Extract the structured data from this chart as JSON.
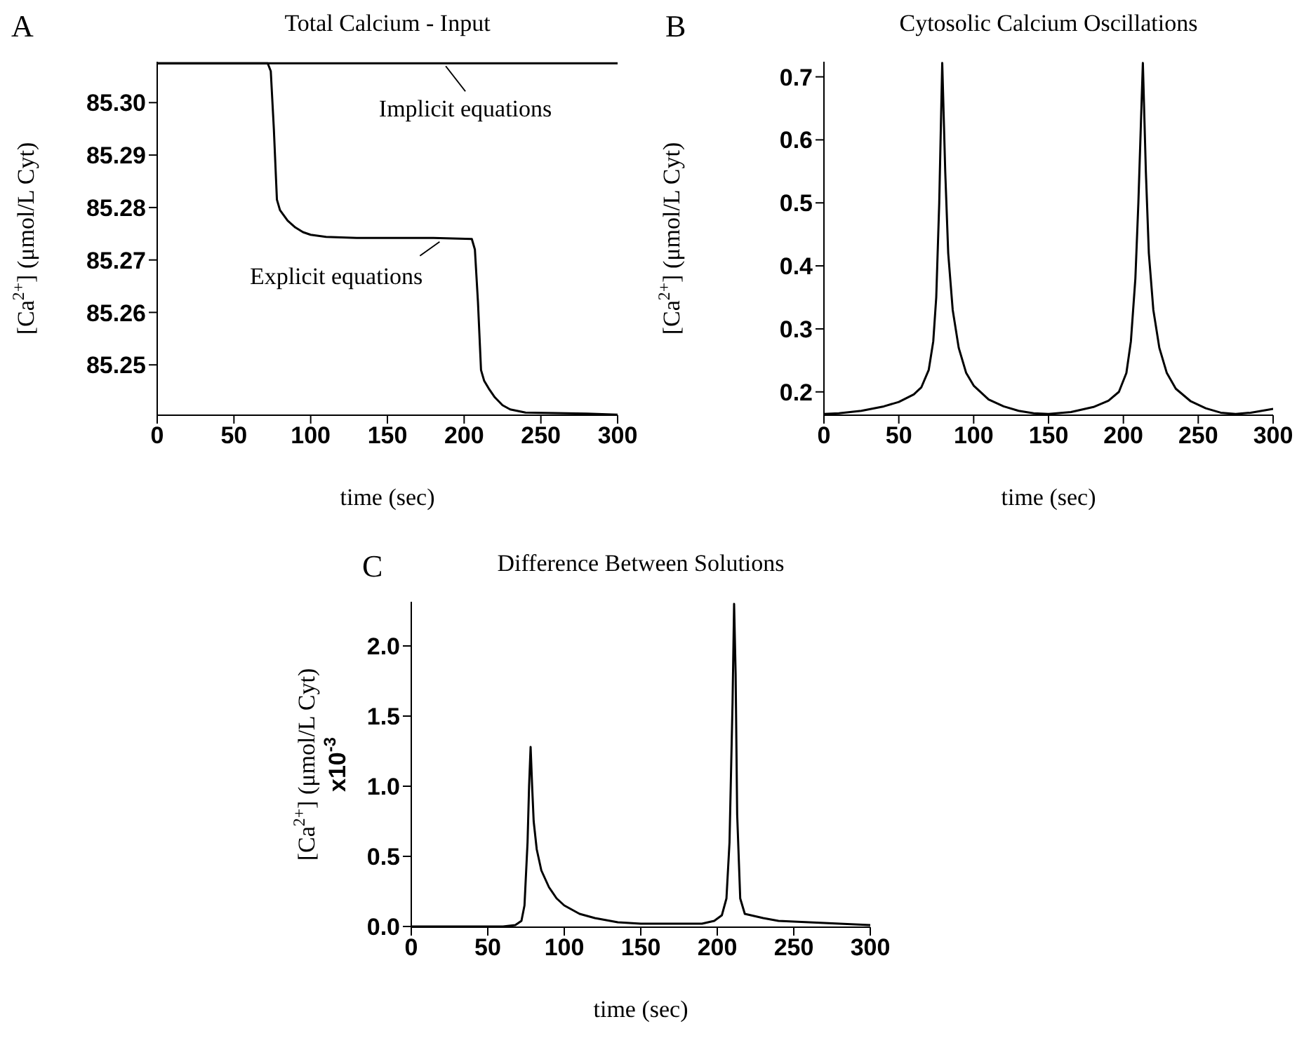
{
  "chart_data": [
    {
      "type": "line",
      "title": "Total Calcium - Input",
      "xlabel": "time (sec)",
      "ylabel": "[Ca$^{2+}$] (μmol/L Cyt)",
      "xlim": [
        0,
        300
      ],
      "xticks": [
        0,
        50,
        100,
        150,
        200,
        250,
        300
      ],
      "ylim": [
        85.2404,
        85.3078
      ],
      "yticks": [
        85.25,
        85.26,
        85.27,
        85.28,
        85.29,
        {
          "value": 85.3,
          "label": "85.30"
        }
      ],
      "annotations": [
        "A",
        {
          "text": "Implicit equations",
          "x": 188,
          "y": 85.3075
        },
        {
          "text": "Explicit equations",
          "x": 184,
          "y": 85.274
        }
      ],
      "series": [
        {
          "color": "#000000",
          "x": [
            0,
            300
          ],
          "values": [
            85.3075,
            85.3075
          ]
        },
        {
          "color": "#000000",
          "x": [
            0,
            72,
            74,
            76,
            78,
            80,
            85,
            90,
            95,
            100,
            110,
            130,
            150,
            180,
            205,
            207,
            209,
            211,
            213,
            216,
            220,
            225,
            230,
            240,
            260,
            280,
            300
          ],
          "values": [
            85.3075,
            85.3075,
            85.306,
            85.295,
            85.2815,
            85.2795,
            85.2775,
            85.2762,
            85.2753,
            85.2748,
            85.2744,
            85.2742,
            85.2742,
            85.2742,
            85.274,
            85.272,
            85.262,
            85.249,
            85.247,
            85.2455,
            85.2438,
            85.2423,
            85.2415,
            85.2409,
            85.2408,
            85.2407,
            85.2405
          ]
        }
      ]
    },
    {
      "type": "line",
      "title": "Cytosolic Calcium Oscillations",
      "xlabel": "time (sec)",
      "ylabel": "[Ca$^{2+}$] (μmol/L Cyt)",
      "xlim": [
        0,
        300
      ],
      "xticks": [
        0,
        50,
        100,
        150,
        200,
        250,
        300
      ],
      "ylim": [
        0.163,
        0.724
      ],
      "yticks": [
        0.2,
        0.3,
        0.4,
        0.5,
        0.6,
        0.7
      ],
      "annotations": [
        "B"
      ],
      "series": [
        {
          "color": "#000000",
          "x": [
            0,
            10,
            25,
            40,
            50,
            60,
            65,
            70,
            73,
            75,
            77,
            79,
            81,
            83,
            86,
            90,
            95,
            100,
            110,
            120,
            130,
            140,
            150,
            165,
            180,
            190,
            197,
            202,
            205,
            208,
            210,
            213,
            215,
            217,
            220,
            224,
            229,
            235,
            245,
            255,
            265,
            275,
            285,
            300
          ],
          "values": [
            0.165,
            0.166,
            0.17,
            0.177,
            0.184,
            0.196,
            0.207,
            0.235,
            0.28,
            0.35,
            0.5,
            0.722,
            0.55,
            0.42,
            0.33,
            0.27,
            0.23,
            0.21,
            0.188,
            0.177,
            0.17,
            0.166,
            0.165,
            0.168,
            0.176,
            0.186,
            0.2,
            0.23,
            0.28,
            0.38,
            0.5,
            0.722,
            0.55,
            0.42,
            0.33,
            0.27,
            0.23,
            0.205,
            0.185,
            0.174,
            0.167,
            0.165,
            0.167,
            0.173
          ]
        }
      ]
    },
    {
      "type": "line",
      "title": "Difference Between Solutions",
      "xlabel": "time (sec)",
      "ylabel": "[Ca$^{2+}$] (μmol/L Cyt)\nx10$^{-3}$",
      "xlim": [
        0,
        300
      ],
      "xticks": [
        0,
        50,
        100,
        150,
        200,
        250,
        300
      ],
      "ylim": [
        -0.005,
        2.315
      ],
      "yticks": [
        {
          "value": 0,
          "label": "0.0"
        },
        0.5,
        {
          "value": 1,
          "label": "1.0"
        },
        1.5,
        {
          "value": 2,
          "label": "2.0"
        }
      ],
      "annotations": [
        "C"
      ],
      "series": [
        {
          "color": "#000000",
          "x": [
            0,
            30,
            60,
            68,
            72,
            74,
            76,
            77,
            78,
            79,
            80,
            82,
            85,
            90,
            95,
            100,
            110,
            120,
            135,
            150,
            170,
            190,
            198,
            203,
            206,
            208,
            210,
            211,
            212,
            213,
            215,
            218,
            222,
            230,
            240,
            260,
            280,
            300
          ],
          "values": [
            0.0,
            0.0,
            0.0,
            0.01,
            0.04,
            0.15,
            0.6,
            1.0,
            1.28,
            1.0,
            0.75,
            0.55,
            0.4,
            0.28,
            0.2,
            0.15,
            0.09,
            0.06,
            0.03,
            0.02,
            0.02,
            0.02,
            0.04,
            0.08,
            0.2,
            0.6,
            1.6,
            2.3,
            1.8,
            0.8,
            0.2,
            0.09,
            0.08,
            0.06,
            0.04,
            0.03,
            0.02,
            0.01
          ]
        }
      ]
    }
  ]
}
